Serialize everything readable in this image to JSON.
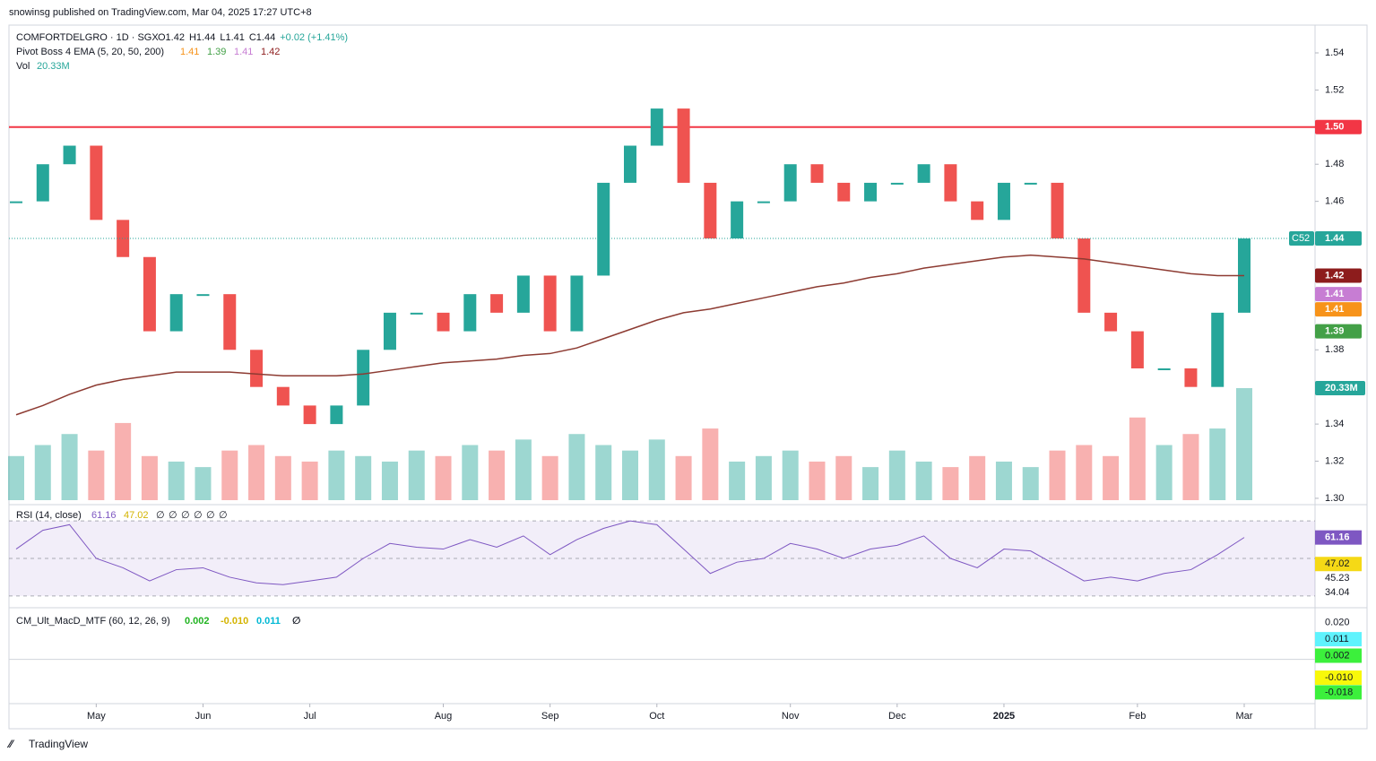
{
  "header": {
    "published": "snowinsg published on TradingView.com, Mar 04, 2025 17:27 UTC+8"
  },
  "chart_data": {
    "type": "candle",
    "symbol": "COMFORTDELGRO · 1D · SGX",
    "quote": [
      "O1.42",
      "H1.44",
      "L1.41",
      "C1.44",
      "+0.02 (+1.41%)"
    ],
    "categories": [
      null,
      null,
      null,
      "May",
      null,
      null,
      null,
      "Jun",
      null,
      null,
      null,
      "Jul",
      null,
      null,
      null,
      null,
      "Aug",
      null,
      null,
      null,
      "Sep",
      null,
      null,
      null,
      "Oct",
      null,
      null,
      null,
      null,
      "Nov",
      null,
      null,
      null,
      "Dec",
      null,
      null,
      null,
      "2025",
      null,
      null,
      null,
      null,
      "Feb",
      null,
      null,
      null,
      "Mar"
    ],
    "series": [
      {
        "name": "COMFORTDELGRO",
        "up_color": "#26a69a",
        "down_color": "#ef5350",
        "values": [
          1.46,
          1.48,
          1.49,
          1.45,
          1.43,
          1.39,
          1.41,
          1.41,
          1.38,
          1.36,
          1.35,
          1.34,
          1.35,
          1.38,
          1.4,
          1.4,
          1.39,
          1.41,
          1.4,
          1.42,
          1.39,
          1.42,
          1.47,
          1.49,
          1.51,
          1.47,
          1.44,
          1.46,
          1.46,
          1.48,
          1.47,
          1.46,
          1.47,
          1.47,
          1.48,
          1.46,
          1.45,
          1.47,
          1.47,
          1.44,
          1.4,
          1.39,
          1.37,
          1.37,
          1.36,
          1.4,
          1.44
        ]
      },
      {
        "color": "#8d3b32",
        "values": [
          1.345,
          1.35,
          1.356,
          1.361,
          1.364,
          1.366,
          1.368,
          1.368,
          1.368,
          1.367,
          1.366,
          1.366,
          1.366,
          1.367,
          1.369,
          1.371,
          1.373,
          1.374,
          1.375,
          1.377,
          1.378,
          1.381,
          1.386,
          1.391,
          1.396,
          1.4,
          1.402,
          1.405,
          1.408,
          1.411,
          1.414,
          1.416,
          1.419,
          1.421,
          1.424,
          1.426,
          1.428,
          1.43,
          1.431,
          1.43,
          1.429,
          1.427,
          1.425,
          1.423,
          1.421,
          1.42,
          1.42
        ]
      }
    ],
    "ylim": [
      1.299,
      1.554
    ],
    "yticks": [
      {
        "value": 1.3,
        "label": "1.30"
      },
      {
        "value": 1.32,
        "label": "1.32"
      },
      {
        "value": 1.34,
        "label": "1.34"
      },
      {
        "value": 1.36,
        "label": "1.36"
      },
      {
        "value": 1.38,
        "label": "1.38"
      },
      {
        "value": 1.4,
        "label": "1.40"
      },
      {
        "value": 1.42,
        "label": "1.42"
      },
      {
        "value": 1.44,
        "label": "1.44"
      },
      {
        "value": 1.46,
        "label": "1.46"
      },
      {
        "value": 1.48,
        "label": "1.48"
      },
      {
        "value": 1.5,
        "label": "1.50"
      },
      {
        "value": 1.52,
        "label": "1.52"
      },
      {
        "value": 1.54,
        "label": "1.54"
      }
    ],
    "resistance": {
      "value": 1.5,
      "label": "1.50",
      "color": "#f23645"
    },
    "last_price": {
      "value": 1.44,
      "label": "1.44",
      "tag": "C52",
      "color": "#26a69a"
    },
    "ema": {
      "title": "Pivot Boss 4 EMA (5, 20, 50, 200)",
      "lines": [
        {
          "value": 1.41,
          "label": "1.41",
          "color": "#f7931a"
        },
        {
          "value": 1.39,
          "label": "1.39",
          "color": "#43a047"
        },
        {
          "value": 1.41,
          "label": "1.41",
          "color": "#c77dd3"
        },
        {
          "value": 1.42,
          "label": "1.42",
          "color": "#8d1c1c"
        }
      ]
    },
    "volume": {
      "title": "Vol",
      "last": {
        "value": 20.33,
        "label": "20.33M"
      },
      "values": [
        8,
        10,
        12,
        9,
        14,
        8,
        7,
        6,
        9,
        10,
        8,
        7,
        9,
        8,
        7,
        9,
        8,
        10,
        9,
        11,
        8,
        12,
        10,
        9,
        11,
        8,
        13,
        7,
        8,
        9,
        7,
        8,
        6,
        9,
        7,
        6,
        8,
        7,
        6,
        9,
        10,
        8,
        15,
        10,
        12,
        13,
        20.33
      ]
    },
    "rsi": {
      "title": "RSI (14, close)",
      "legend": [
        "61.16",
        "47.02",
        "∅",
        "∅",
        "∅",
        "∅",
        "∅",
        "∅"
      ],
      "color": "#7e57c2",
      "values": [
        55,
        65,
        68,
        50,
        45,
        38,
        44,
        45,
        40,
        37,
        36,
        38,
        40,
        50,
        58,
        56,
        55,
        60,
        56,
        62,
        52,
        60,
        66,
        70,
        68,
        55,
        42,
        48,
        50,
        58,
        55,
        50,
        55,
        57,
        62,
        50,
        45,
        55,
        54,
        46,
        38,
        40,
        38,
        42,
        44,
        52,
        61.16
      ],
      "ylim": [
        28.5,
        71.5
      ],
      "levels": [
        70,
        50,
        30
      ],
      "labels": [
        {
          "value": 61.16,
          "label": "61.16"
        },
        {
          "value": 47.02,
          "label": "47.02"
        },
        {
          "value": 45.23,
          "label": "45.23"
        },
        {
          "value": 34.04,
          "label": "34.04"
        }
      ]
    },
    "macd": {
      "title": "CM_Ult_MacD_MTF (60, 12, 26, 9)",
      "legend": [
        "0.002",
        "-0.010",
        "0.011",
        "∅"
      ],
      "ylim": [
        -0.0227,
        0.0223
      ],
      "labels": [
        {
          "value": 0.02,
          "label": "0.020"
        },
        {
          "value": 0.011,
          "label": "0.011"
        },
        {
          "value": 0.002,
          "label": "0.002"
        },
        {
          "value": -0.01,
          "label": "-0.010"
        },
        {
          "value": -0.018,
          "label": "-0.018"
        }
      ]
    }
  },
  "footer": "TradingView"
}
